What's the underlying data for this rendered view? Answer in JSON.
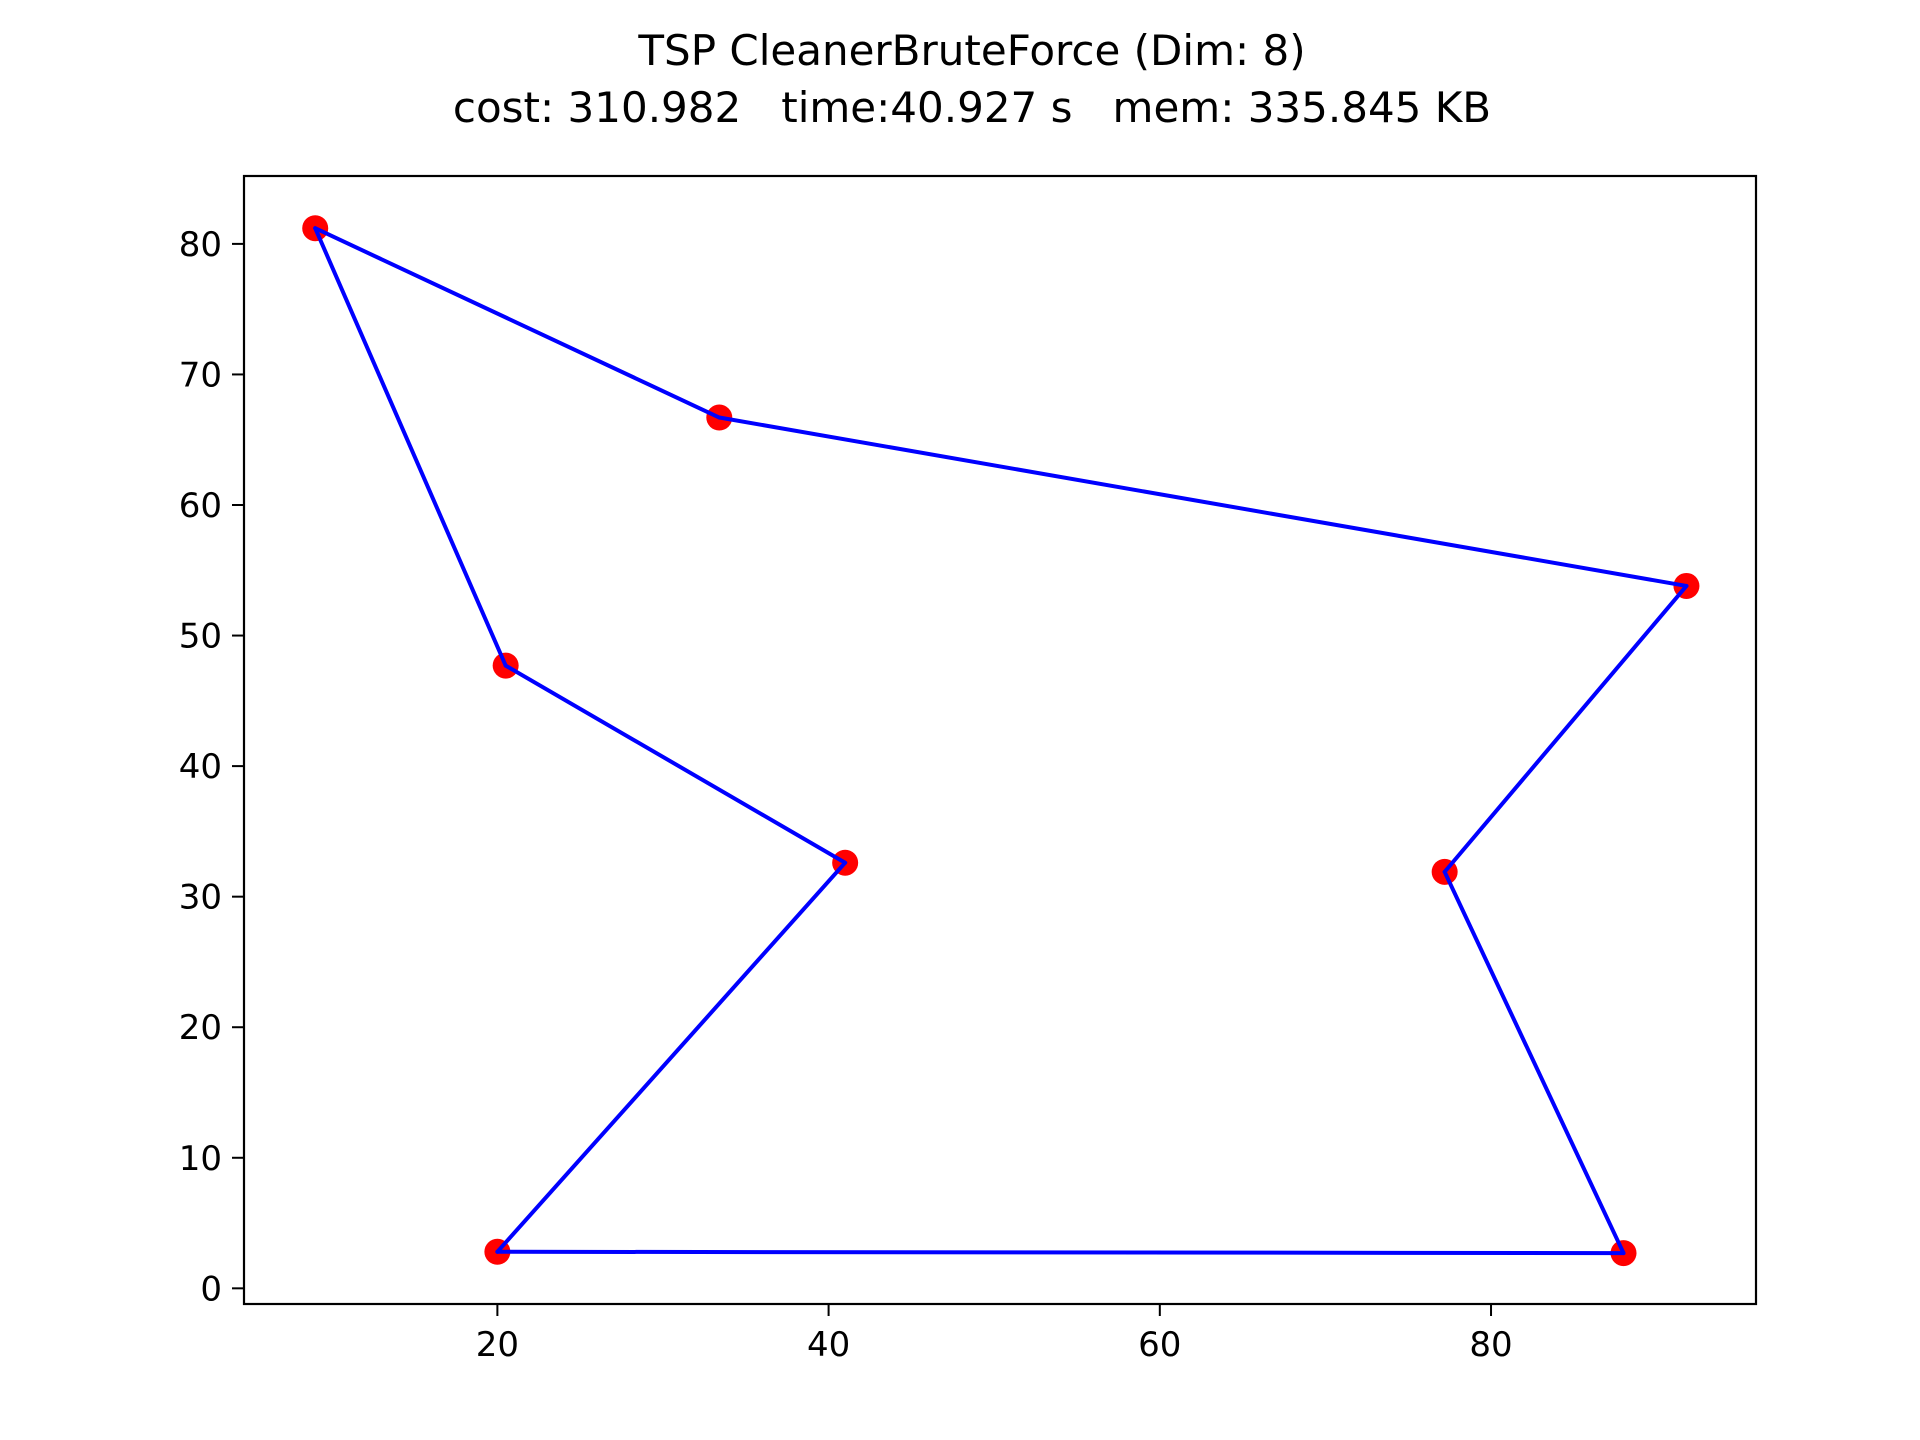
{
  "chart_data": {
    "type": "line",
    "title": "TSP CleanerBruteForce (Dim: 8)",
    "subtitle": "cost: 310.982   time:40.927 s   mem: 335.845 KB",
    "xlabel": "",
    "ylabel": "",
    "xlim": [
      4.7,
      96.0
    ],
    "ylim": [
      -1.2,
      85.2
    ],
    "x_ticks": [
      20,
      40,
      60,
      80
    ],
    "y_ticks": [
      0,
      10,
      20,
      30,
      40,
      50,
      60,
      70,
      80
    ],
    "x_tick_labels": [
      "20",
      "40",
      "60",
      "80"
    ],
    "y_tick_labels": [
      "0",
      "10",
      "20",
      "30",
      "40",
      "50",
      "60",
      "70",
      "80"
    ],
    "grid": false,
    "legend": "none",
    "series": [
      {
        "kind": "scatter",
        "color": "#ff0000",
        "points": [
          {
            "x": 9.0,
            "y": 81.2
          },
          {
            "x": 33.4,
            "y": 66.7
          },
          {
            "x": 91.8,
            "y": 53.8
          },
          {
            "x": 77.2,
            "y": 31.9
          },
          {
            "x": 88.0,
            "y": 2.7
          },
          {
            "x": 20.0,
            "y": 2.8
          },
          {
            "x": 41.0,
            "y": 32.6
          },
          {
            "x": 20.5,
            "y": 47.7
          }
        ]
      },
      {
        "kind": "line",
        "color": "#0000ff",
        "points": [
          {
            "x": 9.0,
            "y": 81.2
          },
          {
            "x": 33.4,
            "y": 66.7
          },
          {
            "x": 91.8,
            "y": 53.8
          },
          {
            "x": 77.2,
            "y": 31.9
          },
          {
            "x": 88.0,
            "y": 2.7
          },
          {
            "x": 20.0,
            "y": 2.8
          },
          {
            "x": 41.0,
            "y": 32.6
          },
          {
            "x": 20.5,
            "y": 47.7
          },
          {
            "x": 9.0,
            "y": 81.2
          }
        ]
      }
    ]
  }
}
